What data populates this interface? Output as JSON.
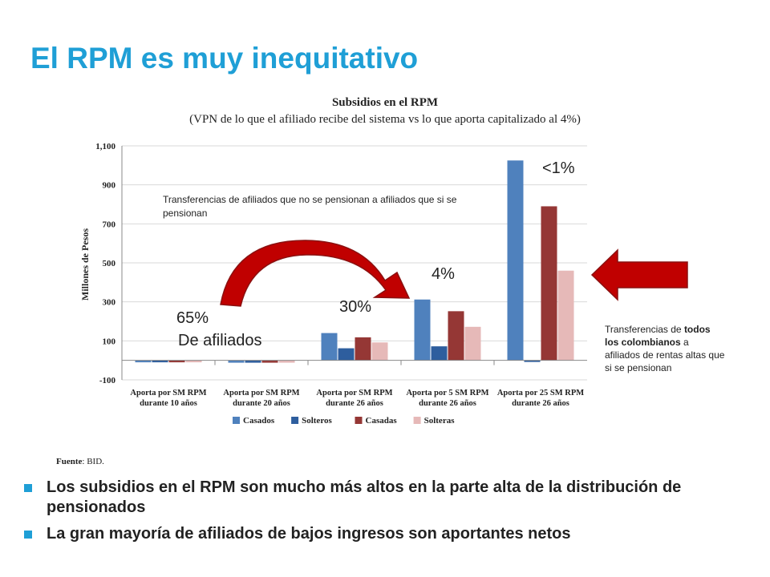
{
  "slide": {
    "title": "El RPM es muy inequitativo",
    "source_label": "Fuente",
    "source_text": ": BID.",
    "bullets": [
      "Los subsidios en el RPM son mucho más altos en la parte alta de la distribución de pensionados",
      "La gran mayoría de afiliados de bajos ingresos son aportantes netos"
    ],
    "annotations": {
      "transfer_note": "Transferencias de afiliados que no se pensionan a afiliados que si se pensionan",
      "side_note_pre": "Transferencias de ",
      "side_note_bold": "todos los colombianos",
      "side_note_post": " a afiliados de rentas altas que si se pensionan",
      "pct_65": "65%",
      "pct_65_sub": "De afiliados",
      "pct_30": "30%",
      "pct_4": "4%",
      "pct_lt1": "<1%"
    },
    "colors": {
      "title": "#1f9fd6",
      "arrow": "#c00000"
    }
  },
  "chart_data": {
    "type": "bar",
    "title": "Subsidios en el RPM",
    "subtitle": "(VPN de lo que el afiliado recibe del sistema vs lo que aporta capitalizado al 4%)",
    "ylabel": "Millones de Pesos",
    "ylim": [
      -100,
      1100
    ],
    "yticks": [
      -100,
      100,
      300,
      500,
      700,
      900,
      1100
    ],
    "ytick_labels": [
      "-100",
      "100",
      "300",
      "500",
      "700",
      "900",
      "1,100"
    ],
    "categories": [
      [
        "Aporta por SM RPM",
        "durante 10 años"
      ],
      [
        "Aporta por SM RPM",
        "durante 20 años"
      ],
      [
        "Aporta por SM RPM",
        "durante 26 años"
      ],
      [
        "Aporta por 5 SM RPM",
        "durante 26 años"
      ],
      [
        "Aporta por 25 SM RPM",
        "durante 26 años"
      ]
    ],
    "series": [
      {
        "name": "Casados",
        "color": "#4f81bd",
        "values": [
          -10,
          -12,
          140,
          312,
          1025
        ]
      },
      {
        "name": "Solteros",
        "color": "#2e5e9e",
        "values": [
          -10,
          -12,
          62,
          72,
          -5
        ]
      },
      {
        "name": "Casadas",
        "color": "#953735",
        "values": [
          -10,
          -12,
          118,
          252,
          790
        ]
      },
      {
        "name": "Solteras",
        "color": "#e6b9b8",
        "values": [
          -10,
          -12,
          92,
          172,
          460
        ]
      }
    ],
    "grid": true,
    "legend": "bottom"
  }
}
